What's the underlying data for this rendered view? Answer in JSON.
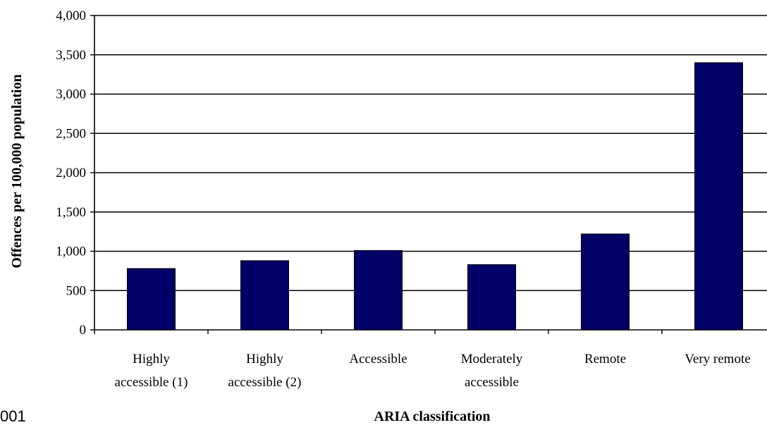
{
  "chart_data": {
    "type": "bar",
    "categories": [
      [
        "Highly",
        "accessible (1)"
      ],
      [
        "Highly",
        "accessible (2)"
      ],
      [
        "Accessible"
      ],
      [
        "Moderately",
        "accessible"
      ],
      [
        "Remote"
      ],
      [
        "Very remote"
      ]
    ],
    "values": [
      780,
      880,
      1010,
      830,
      1220,
      3400
    ],
    "xlabel": "ARIA classification",
    "ylabel": "Offences per 100,000 population",
    "ylim": [
      0,
      4000
    ],
    "yticks": [
      0,
      500,
      1000,
      1500,
      2000,
      2500,
      3000,
      3500,
      4000
    ],
    "ytick_labels": [
      "0",
      "500",
      "1,000",
      "1,500",
      "2,000",
      "2,500",
      "3,000",
      "3,500",
      "4,000"
    ],
    "grid": true,
    "legend": "none",
    "colors": {
      "bar": "#000066",
      "gridline": "#000000"
    }
  },
  "fragment_text": "001"
}
